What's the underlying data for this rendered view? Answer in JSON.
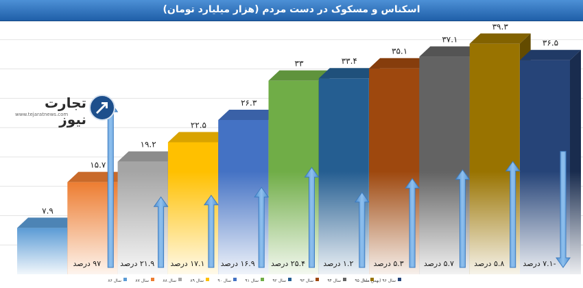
{
  "chart_data": {
    "type": "bar",
    "title": "اسکناس و مسکوک در دست مردم (هزار میلیارد تومان)",
    "categories": [
      "سال ۸۶",
      "سال ۸۷",
      "سال ۸۸",
      "سال ۸۹",
      "سال ۹۰",
      "سال ۹۱",
      "سال ۹۲",
      "سال ۹۳",
      "سال ۹۴",
      "سال ۹۵",
      "سال ۹۶ (بهمن ماه)"
    ],
    "values": [
      7.9,
      15.7,
      19.2,
      22.5,
      26.3,
      33,
      33.4,
      35.1,
      37.1,
      39.3,
      36.5
    ],
    "value_labels": [
      "۷.۹",
      "۱۵.۷",
      "۱۹.۲",
      "۲۲.۵",
      "۲۶.۳",
      "۳۳",
      "۳۳.۴",
      "۳۵.۱",
      "۳۷.۱",
      "۳۹.۳",
      "۳۶.۵"
    ],
    "growth_percent": [
      null,
      97,
      21.9,
      17.1,
      16.9,
      25.4,
      1.2,
      5.3,
      5.7,
      5.8,
      -7.1
    ],
    "growth_labels": [
      "",
      "۹۷ درصد",
      "۲۱.۹ درصد",
      "۱۷.۱ درصد",
      "۱۶.۹ درصد",
      "۲۵.۴ درصد",
      "۱.۲ درصد",
      "۵.۳ درصد",
      "۵.۷ درصد",
      "۵.۸ درصد",
      "-۷.۱ درصد"
    ],
    "ylim": [
      0,
      45
    ],
    "grid": true,
    "legend_position": "bottom",
    "colors": [
      "#5b9bd5",
      "#ed7d31",
      "#a5a5a5",
      "#ffc000",
      "#4472c4",
      "#70ad47",
      "#255e91",
      "#9e480e",
      "#636363",
      "#997300",
      "#264478"
    ]
  },
  "logo": {
    "name": "تجارت نیوز",
    "site": "www.tejaratnews.com"
  }
}
